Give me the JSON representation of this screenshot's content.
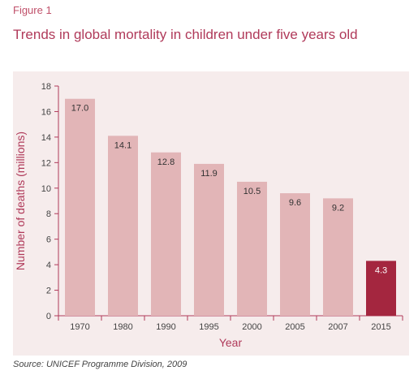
{
  "figure_label": "Figure 1",
  "title": "Trends in global mortality in children under five years old",
  "source": "Source: UNICEF Programme Division, 2009",
  "colors": {
    "bar": "#e2b5b7",
    "bar_highlight": "#a4263f",
    "accent": "#b03a5a",
    "panel": "#f6ecec"
  },
  "chart_data": {
    "type": "bar",
    "categories": [
      "1970",
      "1980",
      "1990",
      "1995",
      "2000",
      "2005",
      "2007",
      "2015"
    ],
    "values": [
      17.0,
      14.1,
      12.8,
      11.9,
      10.5,
      9.6,
      9.2,
      4.3
    ],
    "value_labels": [
      "17.0",
      "14.1",
      "12.8",
      "11.9",
      "10.5",
      "9.6",
      "9.2",
      "4.3"
    ],
    "highlight_index": 7,
    "xlabel": "Year",
    "ylabel": "Number of deaths (millions)",
    "ylim": [
      0,
      18
    ],
    "yticks": [
      0,
      2,
      4,
      6,
      8,
      10,
      12,
      14,
      16,
      18
    ],
    "grid": false
  }
}
